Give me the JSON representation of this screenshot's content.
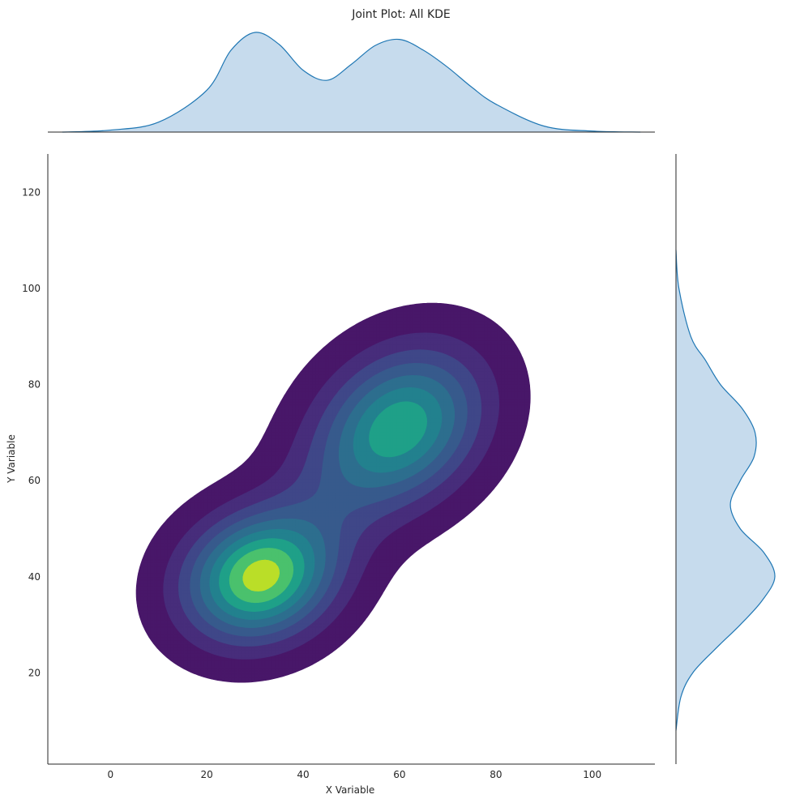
{
  "chart_data": {
    "type": "joint-kde",
    "title": "Joint Plot: All KDE",
    "xlabel": "X Variable",
    "ylabel": "Y Variable",
    "xlim": [
      -13,
      113
    ],
    "ylim": [
      1,
      128
    ],
    "grid": false,
    "legend": "none",
    "x_ticks": [
      0,
      20,
      40,
      60,
      80,
      100
    ],
    "y_ticks": [
      20,
      40,
      60,
      80,
      100,
      120
    ],
    "x_tick_labels": [
      "0",
      "20",
      "40",
      "60",
      "80",
      "100"
    ],
    "y_tick_labels": [
      "20",
      "40",
      "60",
      "80",
      "100",
      "120"
    ],
    "colormap": "viridis",
    "kde_levels": 9,
    "kde_components": [
      {
        "center_x": 31,
        "center_y": 40,
        "weight": 0.55
      },
      {
        "center_x": 60,
        "center_y": 71,
        "weight": 0.45
      }
    ],
    "marginal_x_density": {
      "x": [
        -10,
        0,
        10,
        20,
        25,
        30,
        35,
        40,
        45,
        50,
        55,
        60,
        65,
        70,
        75,
        80,
        90,
        100,
        110
      ],
      "density": [
        0.0,
        0.02,
        0.1,
        0.42,
        0.82,
        1.0,
        0.88,
        0.62,
        0.52,
        0.68,
        0.87,
        0.93,
        0.82,
        0.65,
        0.45,
        0.28,
        0.06,
        0.01,
        0.0
      ]
    },
    "marginal_y_density": {
      "y": [
        8,
        15,
        20,
        25,
        30,
        35,
        40,
        45,
        50,
        55,
        60,
        65,
        70,
        75,
        80,
        85,
        90,
        100,
        108
      ],
      "density": [
        0.0,
        0.05,
        0.17,
        0.4,
        0.65,
        0.87,
        1.0,
        0.89,
        0.65,
        0.55,
        0.65,
        0.79,
        0.8,
        0.67,
        0.45,
        0.3,
        0.15,
        0.03,
        0.0
      ]
    }
  },
  "colors": {
    "kde_levels": [
      "#481769",
      "#472d7b",
      "#3f4788",
      "#375a8c",
      "#2d6e8e",
      "#22818e",
      "#1fa088",
      "#4ac16d",
      "#bade28"
    ],
    "marginal_line": "#1f77b4",
    "marginal_fill": "#c6dbed",
    "axis": "#262626"
  }
}
